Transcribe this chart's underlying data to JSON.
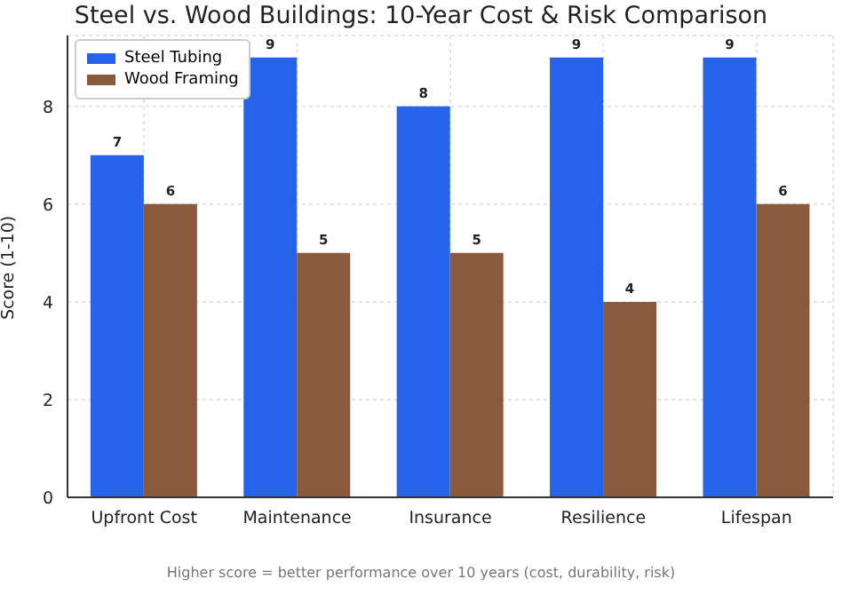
{
  "chart_data": {
    "type": "bar",
    "title": "Steel vs. Wood Buildings: 10-Year Cost & Risk Comparison",
    "ylabel": "Score (1-10)",
    "categories": [
      "Upfront Cost",
      "Maintenance",
      "Insurance",
      "Resilience",
      "Lifespan"
    ],
    "series": [
      {
        "name": "Steel Tubing",
        "color": "#2563eb",
        "values": [
          7,
          9,
          8,
          9,
          9
        ]
      },
      {
        "name": "Wood Framing",
        "color": "#8b5a3c",
        "values": [
          6,
          5,
          5,
          4,
          6
        ]
      }
    ],
    "ylim": [
      0,
      9.45
    ],
    "yticks": [
      0,
      2,
      4,
      6,
      8
    ],
    "grid": true,
    "legend": "top left",
    "data_labels": true,
    "annotations": [
      "Higher score = better performance over 10 years (cost, durability, risk)"
    ]
  }
}
